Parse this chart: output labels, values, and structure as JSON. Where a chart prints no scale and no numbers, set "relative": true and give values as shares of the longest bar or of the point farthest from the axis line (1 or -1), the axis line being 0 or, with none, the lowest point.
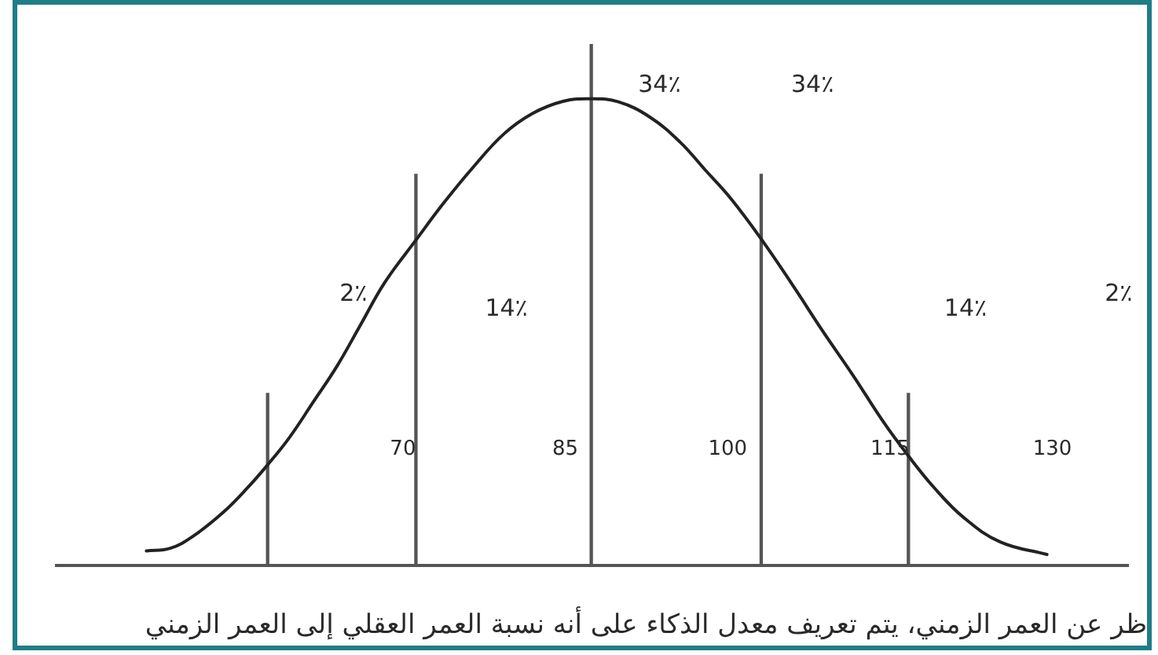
{
  "chart_data": {
    "type": "line",
    "relative": true,
    "marker": "none",
    "xlim": [
      38,
      137
    ],
    "xticks": [
      70,
      85,
      100,
      115,
      130
    ],
    "series": [
      {
        "color": "#222222",
        "x": [
          46.3,
          48.5,
          50.6,
          53.4,
          55.6,
          57.5,
          59.5,
          61.7,
          63.9,
          66.1,
          68.3,
          71.2,
          73.8,
          76.5,
          79.3,
          82.0,
          84.8,
          87.3,
          89.9,
          92.8,
          95.6,
          97.9,
          100.2,
          103.0,
          105.9,
          108.7,
          111.6,
          114.4,
          116.7,
          119.0,
          121.8,
          125.2,
          129.5
        ],
        "values": [
          0.028,
          0.033,
          0.056,
          0.102,
          0.148,
          0.193,
          0.245,
          0.313,
          0.382,
          0.462,
          0.542,
          0.624,
          0.696,
          0.764,
          0.827,
          0.867,
          0.89,
          0.895,
          0.889,
          0.86,
          0.812,
          0.759,
          0.706,
          0.629,
          0.541,
          0.452,
          0.364,
          0.275,
          0.21,
          0.151,
          0.092,
          0.045,
          0.021
        ]
      },
      {
        "type": "bar",
        "color": "#555555",
        "x": [
          57.5,
          71.2,
          87.4,
          103.1,
          116.7
        ],
        "values": [
          0.33,
          0.75,
          1,
          0.75,
          0.33
        ]
      }
    ],
    "annotations": [
      "2٪",
      "14٪",
      "34٪",
      "34٪",
      "14٪",
      "2٪",
      "ظر عن العمر الزمني، يتم تعريف معدل الذكاء على أنه نسبة العمر العقلي إلى العمر الزمني"
    ]
  }
}
